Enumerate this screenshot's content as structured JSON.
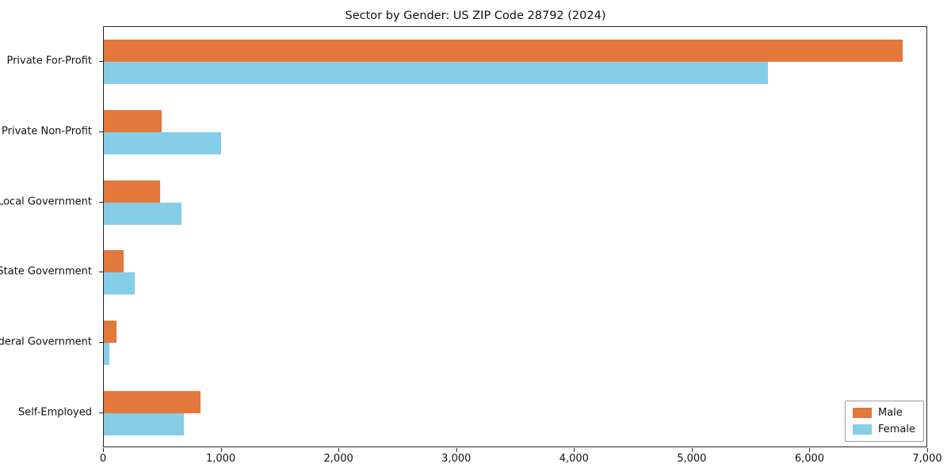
{
  "title": "Sector by Gender: US ZIP Code 28792 (2024)",
  "chart_data": {
    "type": "bar",
    "orientation": "horizontal",
    "title": "Sector by Gender: US ZIP Code 28792 (2024)",
    "categories": [
      "Private For-Profit",
      "Private Non-Profit",
      "Local Government",
      "State Government",
      "Federal Government",
      "Self-Employed"
    ],
    "series": [
      {
        "name": "Male",
        "color": "#e2783b",
        "values": [
          6800,
          490,
          480,
          170,
          110,
          820
        ]
      },
      {
        "name": "Female",
        "color": "#86cde8",
        "values": [
          5650,
          1000,
          660,
          260,
          50,
          680
        ]
      }
    ],
    "xlabel": "",
    "ylabel": "",
    "xlim": [
      0,
      7000
    ],
    "xticks": [
      0,
      1000,
      2000,
      3000,
      4000,
      5000,
      6000,
      7000
    ],
    "grid": false,
    "legend_position": "lower right"
  }
}
